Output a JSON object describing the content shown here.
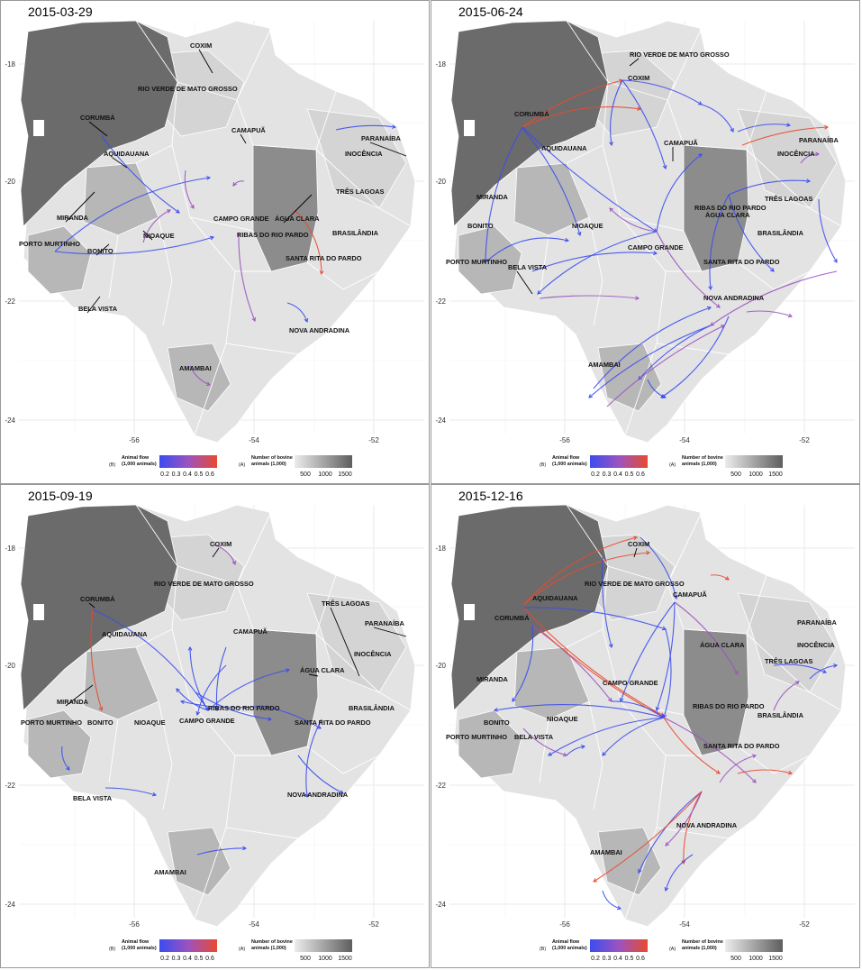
{
  "panels": [
    {
      "date": "2015-03-29",
      "labels": [
        "COXIM",
        "RIO VERDE DE MATO GROSSO",
        "CORUMBÁ",
        "CAMAPUÃ",
        "PARANAÍBA",
        "INOCÊNCIA",
        "AQUIDAUANA",
        "TRÊS LAGOAS",
        "MIRANDA",
        "CAMPO GRANDE",
        "ÁGUA CLARA",
        "NIOAQUE",
        "PORTO MURTINHO",
        "BONITO",
        "RIBAS DO RIO PARDO",
        "BRASILÂNDIA",
        "SANTA RITA DO PARDO",
        "BELA VISTA",
        "NOVA ANDRADINA",
        "AMAMBAI"
      ],
      "legend_variant": "flows_first"
    },
    {
      "date": "2015-06-24",
      "labels": [
        "RIO VERDE DE MATO GROSSO",
        "COXIM",
        "CORUMBÁ",
        "CAMAPUÃ",
        "PARANAÍBA",
        "AQUIDAUANA",
        "INOCÊNCIA",
        "TRÊS LAGOAS",
        "MIRANDA",
        "RIBAS DO RIO PARDO",
        "ÁGUA CLARA",
        "BONITO",
        "NIOAQUE",
        "BRASILÂNDIA",
        "CAMPO GRANDE",
        "PORTO MURTINHO",
        "SANTA RITA DO PARDO",
        "BELA VISTA",
        "NOVA ANDRADINA",
        "AMAMBAI"
      ],
      "legend_variant": "flows_first"
    },
    {
      "date": "2015-09-19",
      "labels": [
        "COXIM",
        "RIO VERDE DE MATO GROSSO",
        "TRÊS LAGOAS",
        "CORUMBÁ",
        "PARANAÍBA",
        "AQUIDAUANA",
        "CAMAPUÃ",
        "INOCÊNCIA",
        "ÁGUA CLARA",
        "MIRANDA",
        "RIBAS DO RIO PARDO",
        "BRASILÂNDIA",
        "CAMPO GRANDE",
        "PORTO MURTINHO",
        "SANTA RITA DO PARDO",
        "BONITO",
        "NIOAQUE",
        "NOVA ANDRADINA",
        "BELA VISTA",
        "AMAMBAI"
      ],
      "legend_variant": "flows_first"
    },
    {
      "date": "2015-12-16",
      "labels": [
        "COXIM",
        "RIO VERDE DE MATO GROSSO",
        "CORUMBÁ",
        "AQUIDAUANA",
        "CAMAPUÃ",
        "PARANAÍBA",
        "ÁGUA CLARA",
        "INOCÊNCIA",
        "TRÊS LAGOAS",
        "MIRANDA",
        "CAMPO GRANDE",
        "RIBAS DO RIO PARDO",
        "BRASILÂNDIA",
        "BONITO",
        "NIOAQUE",
        "PORTO MURTINHO",
        "BELA VISTA",
        "SANTA RITA DO PARDO",
        "NOVA ANDRADINA",
        "AMAMBAI"
      ],
      "legend_variant": "flows_first"
    }
  ],
  "axes": {
    "x_ticks": [
      "-56",
      "-54",
      "-52"
    ],
    "y_ticks": [
      "-18",
      "-20",
      "-22",
      "-24"
    ]
  },
  "legend": {
    "flow_tag": "(B)",
    "flow_title_1": "Animal flow",
    "flow_title_2": "(1,000 animals)",
    "flow_ticks": [
      "0.2",
      "0.3",
      "0.4",
      "0.5",
      "0.6"
    ],
    "flow_colors": {
      "low": "#3b4cf0",
      "mid": "#9b53c0",
      "high": "#e84a2f"
    },
    "herd_tag": "(A)",
    "herd_title_1": "Number of bovine",
    "herd_title_2": "animals (1,000)",
    "herd_ticks": [
      "500",
      "1000",
      "1500"
    ],
    "herd_colors": {
      "low": "#ececec",
      "high": "#5e5e5e"
    }
  },
  "map_colors": {
    "pantanal": "#6b6b6b",
    "dark": "#8c8c8c",
    "mid": "#b7b7b7",
    "light": "#d4d4d4",
    "lighter": "#e3e3e3",
    "grid": "#e8e8e8",
    "border": "#ffffff"
  }
}
